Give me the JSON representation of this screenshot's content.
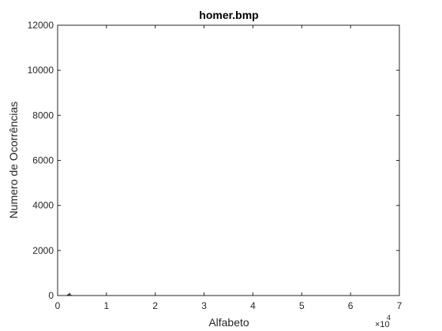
{
  "chart_data": {
    "type": "bar",
    "title": "homer.bmp",
    "xlabel": "Alfabeto",
    "ylabel": "Numero de Ocorrências",
    "xlim": [
      0,
      70000
    ],
    "ylim": [
      0,
      12000
    ],
    "x_exponent_base": "×10",
    "x_exponent_power": "4",
    "x_ticks": [
      0,
      1,
      2,
      3,
      4,
      5,
      6,
      7
    ],
    "x_tick_labels": [
      "0",
      "1",
      "2",
      "3",
      "4",
      "5",
      "6",
      "7"
    ],
    "y_ticks": [
      0,
      2000,
      4000,
      6000,
      8000,
      10000,
      12000
    ],
    "y_tick_labels": [
      "0",
      "2000",
      "4000",
      "6000",
      "8000",
      "10000",
      "12000"
    ],
    "grid": false,
    "bar_color": "#000000",
    "series": [
      {
        "x": [
          2000,
          2200,
          2400,
          2500,
          2600,
          2800
        ],
        "values": [
          40,
          80,
          60,
          120,
          50,
          30
        ]
      }
    ]
  }
}
